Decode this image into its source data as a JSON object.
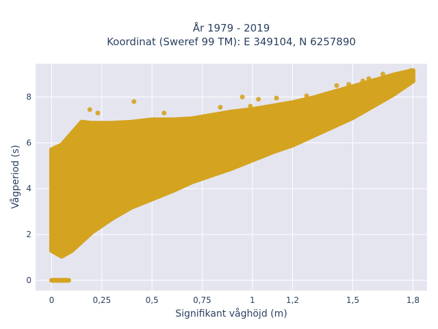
{
  "chart_data": {
    "type": "scatter",
    "title_lines": [
      "År 1979 - 2019",
      "Koordinat (Sweref 99 TM): E 349104, N 6257890"
    ],
    "xlabel": "Signifikant våghöjd (m)",
    "ylabel": "Vågperiod (s)",
    "xlim": [
      -0.08,
      1.87
    ],
    "ylim": [
      -0.45,
      9.45
    ],
    "x_ticks": [
      0,
      0.25,
      0.5,
      0.75,
      1,
      1.2,
      1.5,
      1.8
    ],
    "x_tick_labels": [
      "0",
      "0,25",
      "0,5",
      "0,75",
      "1",
      "1,2",
      "1,5",
      "1,8"
    ],
    "y_ticks": [
      0,
      2,
      4,
      6,
      8
    ],
    "y_tick_labels": [
      "0",
      "2",
      "4",
      "6",
      "8"
    ],
    "grid": true,
    "legend": false,
    "marker_color": "#D4A31F",
    "plot_background": "#E5E5F0",
    "cloud_lower_boundary": [
      {
        "x": 0.0,
        "y": 1.3
      },
      {
        "x": 0.05,
        "y": 1.05
      },
      {
        "x": 0.1,
        "y": 1.3
      },
      {
        "x": 0.2,
        "y": 2.1
      },
      {
        "x": 0.3,
        "y": 2.7
      },
      {
        "x": 0.4,
        "y": 3.2
      },
      {
        "x": 0.5,
        "y": 3.55
      },
      {
        "x": 0.6,
        "y": 3.9
      },
      {
        "x": 0.7,
        "y": 4.3
      },
      {
        "x": 0.8,
        "y": 4.6
      },
      {
        "x": 0.9,
        "y": 4.9
      },
      {
        "x": 1.0,
        "y": 5.25
      },
      {
        "x": 1.1,
        "y": 5.6
      },
      {
        "x": 1.2,
        "y": 5.9
      },
      {
        "x": 1.3,
        "y": 6.3
      },
      {
        "x": 1.4,
        "y": 6.7
      },
      {
        "x": 1.5,
        "y": 7.1
      },
      {
        "x": 1.6,
        "y": 7.6
      },
      {
        "x": 1.7,
        "y": 8.1
      },
      {
        "x": 1.8,
        "y": 8.7
      }
    ],
    "cloud_upper_boundary": [
      {
        "x": 0.0,
        "y": 5.7
      },
      {
        "x": 0.05,
        "y": 5.9
      },
      {
        "x": 0.1,
        "y": 6.4
      },
      {
        "x": 0.15,
        "y": 6.9
      },
      {
        "x": 0.2,
        "y": 6.85
      },
      {
        "x": 0.3,
        "y": 6.85
      },
      {
        "x": 0.4,
        "y": 6.9
      },
      {
        "x": 0.5,
        "y": 7.0
      },
      {
        "x": 0.6,
        "y": 7.0
      },
      {
        "x": 0.7,
        "y": 7.05
      },
      {
        "x": 0.8,
        "y": 7.2
      },
      {
        "x": 0.9,
        "y": 7.35
      },
      {
        "x": 1.0,
        "y": 7.45
      },
      {
        "x": 1.1,
        "y": 7.6
      },
      {
        "x": 1.2,
        "y": 7.75
      },
      {
        "x": 1.3,
        "y": 7.95
      },
      {
        "x": 1.4,
        "y": 8.2
      },
      {
        "x": 1.5,
        "y": 8.45
      },
      {
        "x": 1.6,
        "y": 8.7
      },
      {
        "x": 1.7,
        "y": 8.95
      },
      {
        "x": 1.8,
        "y": 9.15
      }
    ],
    "outlier_points": [
      {
        "x": 0.19,
        "y": 7.45
      },
      {
        "x": 0.23,
        "y": 7.3
      },
      {
        "x": 0.41,
        "y": 7.8
      },
      {
        "x": 0.56,
        "y": 7.3
      },
      {
        "x": 0.84,
        "y": 7.55
      },
      {
        "x": 0.95,
        "y": 8.0
      },
      {
        "x": 0.99,
        "y": 7.6
      },
      {
        "x": 1.03,
        "y": 7.9
      },
      {
        "x": 1.12,
        "y": 7.95
      },
      {
        "x": 1.27,
        "y": 8.05
      },
      {
        "x": 1.42,
        "y": 8.5
      },
      {
        "x": 1.48,
        "y": 8.55
      },
      {
        "x": 1.55,
        "y": 8.7
      },
      {
        "x": 1.58,
        "y": 8.8
      },
      {
        "x": 1.65,
        "y": 9.0
      },
      {
        "x": 1.74,
        "y": 9.0
      },
      {
        "x": 1.79,
        "y": 9.15
      }
    ],
    "zero_period_segment": {
      "x_start": 0.0,
      "x_end": 0.085,
      "y": 0
    }
  }
}
